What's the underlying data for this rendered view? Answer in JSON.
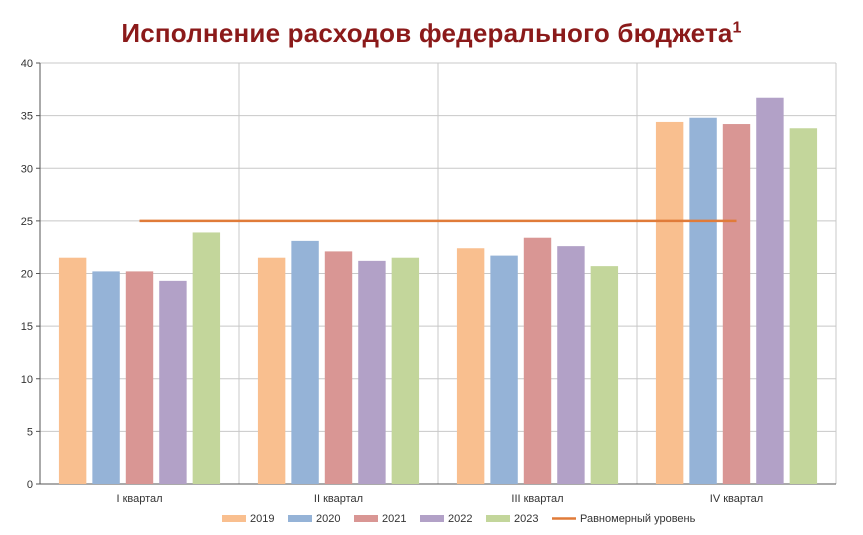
{
  "title": "Исполнение расходов федерального бюджета",
  "title_sup": "1",
  "chart_data": {
    "type": "bar",
    "categories": [
      "I квартал",
      "II квартал",
      "III квартал",
      "IV квартал"
    ],
    "ylim": [
      0,
      40
    ],
    "yticks": [
      0,
      5,
      10,
      15,
      20,
      25,
      30,
      35,
      40
    ],
    "grid": true,
    "legend_position": "bottom",
    "series": [
      {
        "name": "2019",
        "color": "#f9bf8f",
        "values": [
          21.5,
          21.5,
          22.4,
          34.4
        ]
      },
      {
        "name": "2020",
        "color": "#95b3d7",
        "values": [
          20.2,
          23.1,
          21.7,
          34.8
        ]
      },
      {
        "name": "2021",
        "color": "#d99694",
        "values": [
          20.2,
          22.1,
          23.4,
          34.2
        ]
      },
      {
        "name": "2022",
        "color": "#b2a1c7",
        "values": [
          19.3,
          21.2,
          22.6,
          36.7
        ]
      },
      {
        "name": "2023",
        "color": "#c3d69b",
        "values": [
          23.9,
          21.5,
          20.7,
          33.8
        ]
      }
    ],
    "reference_line": {
      "name": "Равномерный уровень",
      "value": 25,
      "color": "#e07b39"
    }
  }
}
